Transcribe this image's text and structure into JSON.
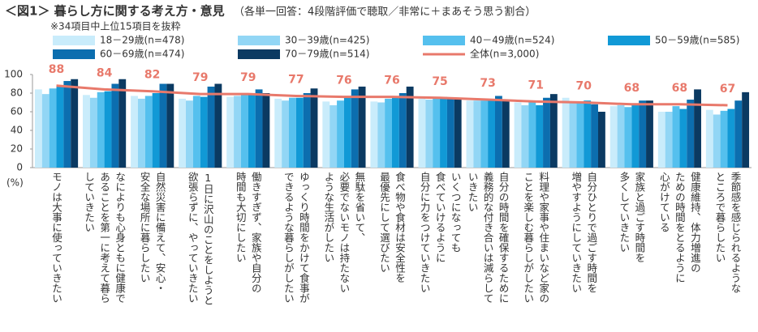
{
  "chart_data": {
    "type": "bar",
    "title": "＜図1＞ 暮らし方に関する考え方・意見",
    "subtitle": "（各単一回答：4段階評価で聴取／非常に＋まあそう思う割合）",
    "note": "※34項目中上位15項目を抜粋",
    "y_label": "(%)",
    "categories": [
      "モノは大事に使っていきたい",
      "なによりも心身ともに健康で\nあることを第一に考えて暮ら\nしていきたい",
      "自然災害に備えて、安心・\n安全な場所に暮らしたい",
      "1日に沢山のことをしようと\n欲張らずに、やっていきたい",
      "働きすぎず、家族や自分の\n時間も大切にしたい",
      "ゆっくり時間をかけて食事が\nできるような暮らしがしたい",
      "無駄を省いて、\n必要でないモノは持たない\nような生活がしたい",
      "食べ物や食材は安全性を\n最優先にして選びたい",
      "いくつになっても\n食べていけるように\n自分に力をつけていきたい",
      "自分の時間を確保するために\n義務的な付き合いは減らして\nいきたい",
      "料理や家事や住まいなど家の\nことを楽しむ暮らしがしたい",
      "自分ひとりで過ごす時間を\n増やすようにしていきたい",
      "家族と過ごす時間を\n多くしていきたい",
      "健康維持、体力増進の\nための時間をとるように\n心がけている",
      "季節感を感じられるような\nところで暮らしたい"
    ],
    "series": [
      {
        "name": "18－29歳(n=478)",
        "color": "#c9ecfb",
        "values": [
          84,
          78,
          77,
          74,
          76,
          74,
          71,
          71,
          74,
          72,
          70,
          75,
          66,
          60,
          62
        ]
      },
      {
        "name": "30－39歳(n=425)",
        "color": "#92d6f5",
        "values": [
          79,
          75,
          74,
          72,
          77,
          72,
          67,
          70,
          73,
          72,
          67,
          70,
          67,
          60,
          57
        ]
      },
      {
        "name": "40－49歳(n=524)",
        "color": "#55c0ee",
        "values": [
          85,
          81,
          77,
          77,
          80,
          75,
          72,
          74,
          76,
          72,
          70,
          70,
          65,
          66,
          61
        ]
      },
      {
        "name": "50－59歳(n=585)",
        "color": "#1199d6",
        "values": [
          88,
          82,
          80,
          76,
          78,
          75,
          77,
          76,
          76,
          73,
          67,
          72,
          68,
          63,
          63
        ]
      },
      {
        "name": "60－69歳(n=474)",
        "color": "#0c6eaf",
        "values": [
          93,
          90,
          90,
          87,
          84,
          80,
          84,
          80,
          75,
          77,
          75,
          68,
          72,
          73,
          72
        ]
      },
      {
        "name": "70－79歳(n=514)",
        "color": "#0b3a62",
        "values": [
          95,
          95,
          90,
          90,
          80,
          85,
          87,
          87,
          74,
          72,
          79,
          60,
          72,
          84,
          81
        ]
      },
      {
        "name": "全体(n=3,000)",
        "color": "#e8796b",
        "line": true,
        "values": [
          88,
          84,
          82,
          79,
          79,
          77,
          76,
          76,
          75,
          73,
          71,
          70,
          68,
          68,
          67
        ]
      }
    ],
    "ylim": [
      0,
      100
    ],
    "yticks": [
      0,
      20,
      40,
      60,
      80,
      100
    ],
    "grid": false
  }
}
